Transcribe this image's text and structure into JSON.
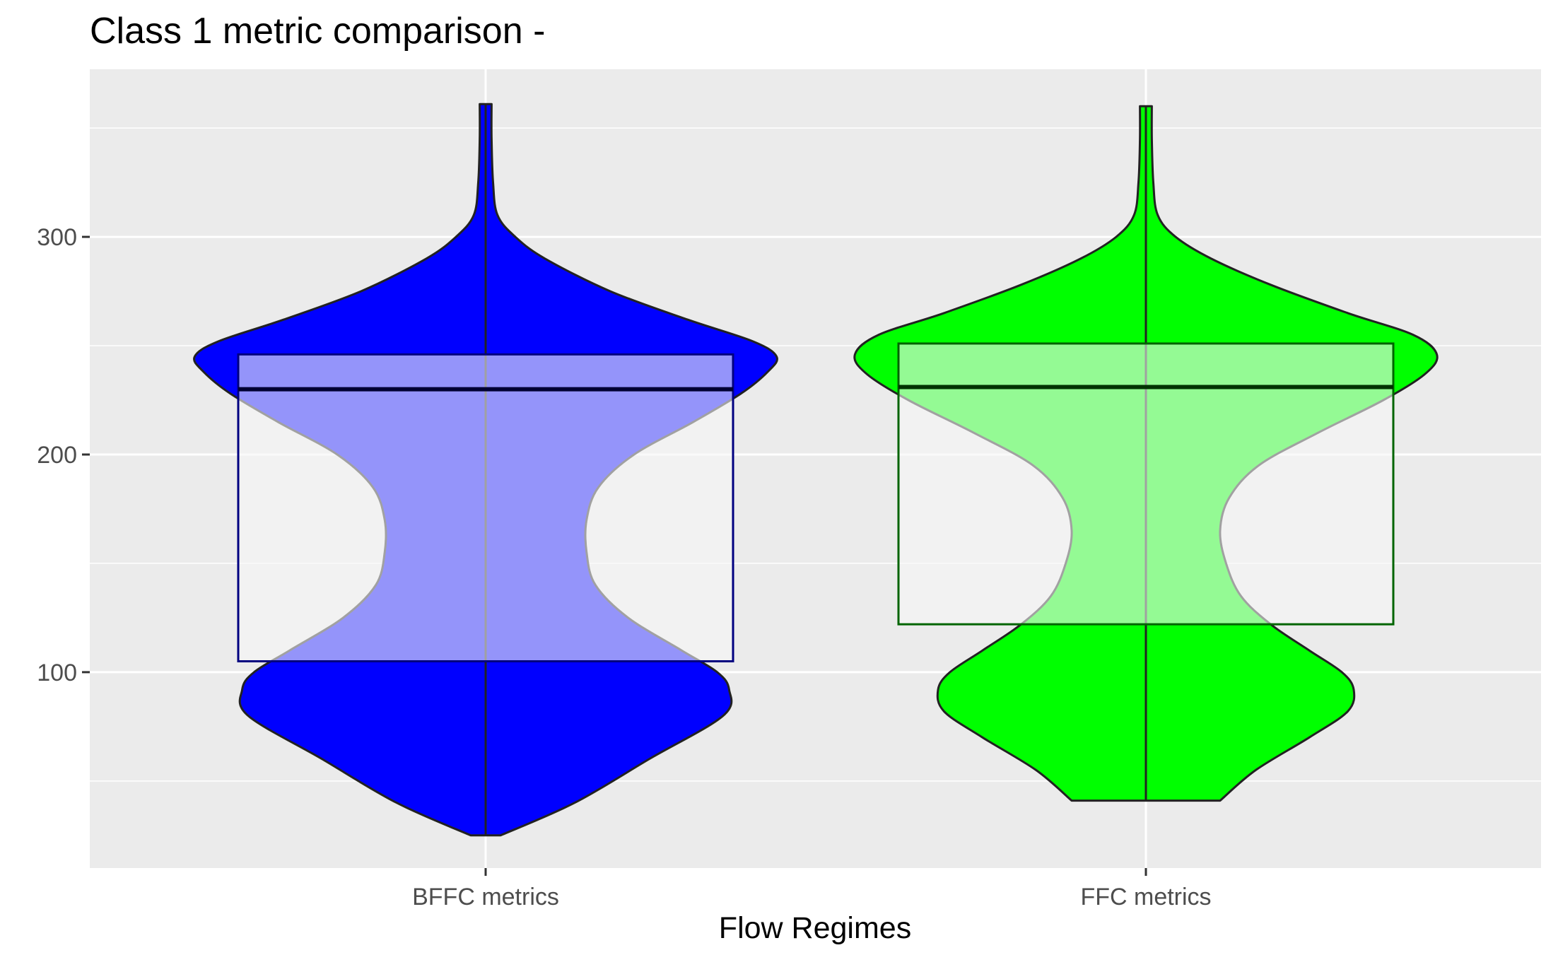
{
  "chart_data": {
    "type": "violin",
    "title": "Class 1 metric comparison -",
    "xlabel": "Flow Regimes",
    "ylabel": "",
    "categories": [
      "BFFC metrics",
      "FFC metrics"
    ],
    "yticks": [
      100,
      200,
      300
    ],
    "ylim": [
      10,
      377
    ],
    "grid": true,
    "legend": "none",
    "background_color": "#ebebeb",
    "series": [
      {
        "category": "BFFC metrics",
        "fill": "#0000ff",
        "box_fill": "#f7f7f7",
        "box_border": "#000080",
        "min": 25,
        "max": 361,
        "box": {
          "q1": 105,
          "median": 230,
          "q3": 246
        },
        "density_profile": [
          [
            25,
            0.05
          ],
          [
            40,
            0.3
          ],
          [
            60,
            0.55
          ],
          [
            80,
            0.8
          ],
          [
            92,
            0.82
          ],
          [
            100,
            0.78
          ],
          [
            110,
            0.66
          ],
          [
            125,
            0.48
          ],
          [
            140,
            0.37
          ],
          [
            155,
            0.34
          ],
          [
            170,
            0.34
          ],
          [
            185,
            0.38
          ],
          [
            200,
            0.5
          ],
          [
            215,
            0.7
          ],
          [
            228,
            0.86
          ],
          [
            238,
            0.95
          ],
          [
            245,
            0.98
          ],
          [
            252,
            0.9
          ],
          [
            262,
            0.68
          ],
          [
            275,
            0.42
          ],
          [
            290,
            0.2
          ],
          [
            300,
            0.1
          ],
          [
            310,
            0.04
          ],
          [
            325,
            0.025
          ],
          [
            345,
            0.02
          ],
          [
            361,
            0.02
          ]
        ]
      },
      {
        "category": "FFC metrics",
        "fill": "#00ff00",
        "box_fill": "#f7f7f7",
        "box_border": "#006400",
        "min": 41,
        "max": 360,
        "box": {
          "q1": 122,
          "median": 231,
          "q3": 251
        },
        "density_profile": [
          [
            41,
            0.25
          ],
          [
            55,
            0.37
          ],
          [
            70,
            0.55
          ],
          [
            82,
            0.68
          ],
          [
            92,
            0.7
          ],
          [
            100,
            0.66
          ],
          [
            110,
            0.55
          ],
          [
            122,
            0.42
          ],
          [
            135,
            0.32
          ],
          [
            150,
            0.27
          ],
          [
            165,
            0.25
          ],
          [
            180,
            0.28
          ],
          [
            195,
            0.38
          ],
          [
            210,
            0.58
          ],
          [
            225,
            0.8
          ],
          [
            237,
            0.94
          ],
          [
            246,
            0.98
          ],
          [
            255,
            0.9
          ],
          [
            265,
            0.68
          ],
          [
            278,
            0.42
          ],
          [
            290,
            0.22
          ],
          [
            300,
            0.1
          ],
          [
            310,
            0.04
          ],
          [
            325,
            0.025
          ],
          [
            345,
            0.02
          ],
          [
            360,
            0.02
          ]
        ]
      }
    ]
  }
}
